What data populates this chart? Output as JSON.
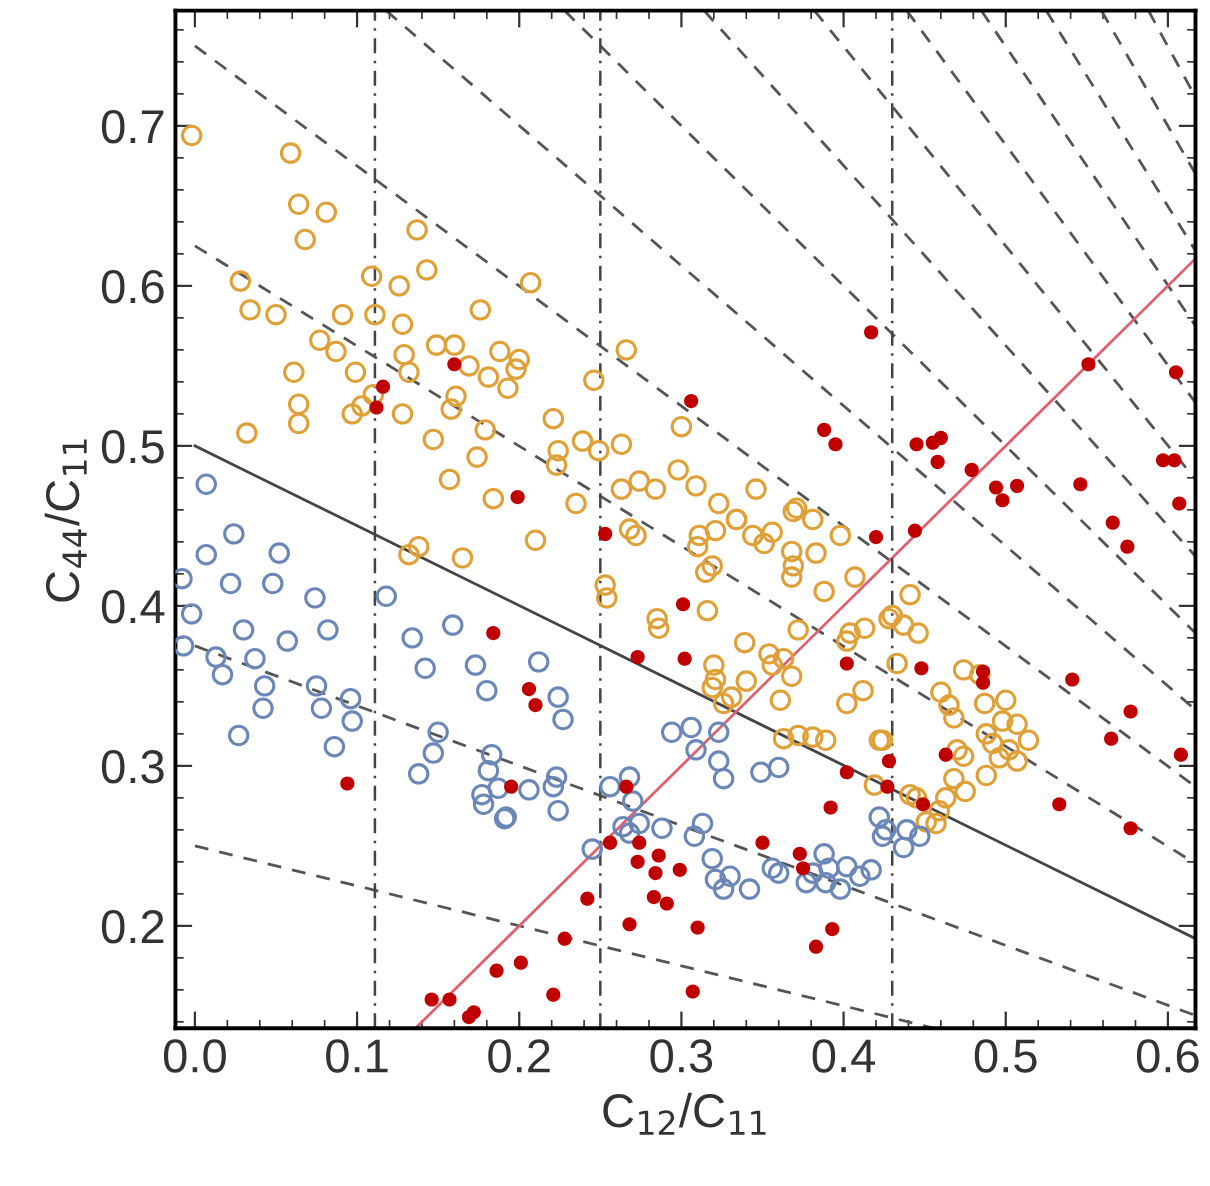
{
  "chart_data": {
    "type": "scatter",
    "xlabel": "C$_{12}$/C$_{11}$",
    "ylabel": "C$_{44}$/C$_{11}$",
    "xlim": [
      -0.012,
      0.617
    ],
    "ylim": [
      0.136,
      0.772
    ],
    "xticks": [
      {
        "value": 0,
        "label": "0.0"
      },
      0.1,
      0.2,
      0.3,
      0.4,
      0.5,
      0.6
    ],
    "yticks": [
      0.2,
      0.3,
      0.4,
      0.5,
      0.6,
      0.7
    ],
    "grid": false,
    "ref_lines": [
      {
        "axis": "x",
        "value": 0.111,
        "color": "#444444",
        "line_style": "dashdot"
      },
      {
        "axis": "x",
        "value": 0.25,
        "color": "#444444",
        "line_style": "dashdot"
      },
      {
        "axis": "x",
        "value": 0.43,
        "color": "#444444",
        "line_style": "dashdot"
      }
    ],
    "series": [
      {
        "type": "line",
        "color": "#555555",
        "line_style": "dashed",
        "marker": "none",
        "x": [
          0,
          0.456
        ],
        "values": [
          0.25,
          0.136
        ]
      },
      {
        "type": "line",
        "color": "#555555",
        "line_style": "dashed",
        "marker": "none",
        "x": [
          0,
          0.617
        ],
        "values": [
          0.375,
          0.144
        ]
      },
      {
        "type": "line",
        "color": "#444444",
        "line_style": "solid",
        "marker": "none",
        "x": [
          0,
          0.617
        ],
        "values": [
          0.5,
          0.192
        ]
      },
      {
        "type": "line",
        "color": "#555555",
        "line_style": "dashed",
        "marker": "none",
        "x": [
          0,
          0.617
        ],
        "values": [
          0.625,
          0.239
        ]
      },
      {
        "type": "line",
        "color": "#555555",
        "line_style": "dashed",
        "marker": "none",
        "x": [
          0,
          0.617
        ],
        "values": [
          0.75,
          0.287
        ]
      },
      {
        "type": "line",
        "color": "#555555",
        "line_style": "dashed",
        "marker": "none",
        "x": [
          0.118,
          0.617
        ],
        "values": [
          0.772,
          0.335
        ]
      },
      {
        "type": "line",
        "color": "#555555",
        "line_style": "dashed",
        "marker": "none",
        "x": [
          0.228,
          0.617
        ],
        "values": [
          0.772,
          0.383
        ]
      },
      {
        "type": "line",
        "color": "#555555",
        "line_style": "dashed",
        "marker": "none",
        "x": [
          0.314,
          0.617
        ],
        "values": [
          0.772,
          0.431
        ]
      },
      {
        "type": "line",
        "color": "#555555",
        "line_style": "dashed",
        "marker": "none",
        "x": [
          0.382,
          0.617
        ],
        "values": [
          0.772,
          0.479
        ]
      },
      {
        "type": "line",
        "color": "#555555",
        "line_style": "dashed",
        "marker": "none",
        "x": [
          0.439,
          0.617
        ],
        "values": [
          0.772,
          0.527
        ]
      },
      {
        "type": "line",
        "color": "#555555",
        "line_style": "dashed",
        "marker": "none",
        "x": [
          0.485,
          0.617
        ],
        "values": [
          0.772,
          0.575
        ]
      },
      {
        "type": "line",
        "color": "#555555",
        "line_style": "dashed",
        "marker": "none",
        "x": [
          0.525,
          0.617
        ],
        "values": [
          0.772,
          0.622
        ]
      },
      {
        "type": "line",
        "color": "#555555",
        "line_style": "dashed",
        "marker": "none",
        "x": [
          0.559,
          0.617
        ],
        "values": [
          0.772,
          0.67
        ]
      },
      {
        "type": "line",
        "color": "#555555",
        "line_style": "dashed",
        "marker": "none",
        "x": [
          0.588,
          0.617
        ],
        "values": [
          0.772,
          0.718
        ]
      },
      {
        "type": "line",
        "color": "#e06070",
        "line_style": "solid",
        "marker": "none",
        "x": [
          0.136,
          0.617
        ],
        "values": [
          0.136,
          0.617
        ]
      },
      {
        "type": "scatter",
        "color": "#dfa037",
        "marker": "circle_open",
        "x": [
          -0.002,
          0.059,
          0.064,
          0.081,
          0.068,
          0.137,
          0.143,
          0.028,
          0.109,
          0.126,
          0.034,
          0.05,
          0.091,
          0.111,
          0.128,
          0.176,
          0.077,
          0.087,
          0.099,
          0.061,
          0.129,
          0.132,
          0.149,
          0.16,
          0.169,
          0.188,
          0.181,
          0.193,
          0.11,
          0.103,
          0.097,
          0.128,
          0.064,
          0.064,
          0.032,
          0.161,
          0.158,
          0.147,
          0.179,
          0.174,
          0.157,
          0.184,
          0.207,
          0.2,
          0.198,
          0.266,
          0.246,
          0.221,
          0.239,
          0.249,
          0.263,
          0.224,
          0.223,
          0.3,
          0.298,
          0.274,
          0.284,
          0.309,
          0.263,
          0.235,
          0.323,
          0.346,
          0.371,
          0.334,
          0.21,
          0.268,
          0.272,
          0.253,
          0.254,
          0.311,
          0.31,
          0.321,
          0.334,
          0.344,
          0.356,
          0.351,
          0.369,
          0.381,
          0.398,
          0.368,
          0.369,
          0.368,
          0.383,
          0.315,
          0.319,
          0.316,
          0.388,
          0.407,
          0.285,
          0.286,
          0.339,
          0.354,
          0.356,
          0.363,
          0.368,
          0.372,
          0.32,
          0.321,
          0.319,
          0.331,
          0.34,
          0.326,
          0.361,
          0.402,
          0.412,
          0.402,
          0.404,
          0.413,
          0.43,
          0.363,
          0.372,
          0.381,
          0.389,
          0.424,
          0.419,
          0.132,
          0.138,
          0.165,
          0.441,
          0.428,
          0.437,
          0.446,
          0.433,
          0.474,
          0.484,
          0.46,
          0.465,
          0.468,
          0.487,
          0.5,
          0.498,
          0.507,
          0.488,
          0.492,
          0.502,
          0.507,
          0.514,
          0.496,
          0.47,
          0.474,
          0.488,
          0.468,
          0.475,
          0.463,
          0.441,
          0.445,
          0.459,
          0.457,
          0.451,
          0.422
        ],
        "values": [
          0.694,
          0.683,
          0.651,
          0.646,
          0.629,
          0.635,
          0.61,
          0.603,
          0.606,
          0.6,
          0.585,
          0.582,
          0.582,
          0.582,
          0.576,
          0.585,
          0.566,
          0.559,
          0.546,
          0.546,
          0.557,
          0.546,
          0.563,
          0.563,
          0.55,
          0.559,
          0.543,
          0.536,
          0.532,
          0.525,
          0.52,
          0.52,
          0.526,
          0.514,
          0.508,
          0.531,
          0.523,
          0.504,
          0.51,
          0.493,
          0.479,
          0.467,
          0.602,
          0.554,
          0.548,
          0.56,
          0.541,
          0.517,
          0.503,
          0.497,
          0.501,
          0.497,
          0.488,
          0.512,
          0.485,
          0.478,
          0.473,
          0.475,
          0.473,
          0.464,
          0.464,
          0.473,
          0.461,
          0.454,
          0.441,
          0.448,
          0.444,
          0.413,
          0.405,
          0.444,
          0.437,
          0.447,
          0.454,
          0.444,
          0.446,
          0.439,
          0.459,
          0.454,
          0.444,
          0.434,
          0.425,
          0.418,
          0.433,
          0.421,
          0.425,
          0.397,
          0.409,
          0.418,
          0.392,
          0.386,
          0.377,
          0.37,
          0.363,
          0.367,
          0.356,
          0.385,
          0.363,
          0.354,
          0.349,
          0.343,
          0.353,
          0.339,
          0.341,
          0.378,
          0.347,
          0.339,
          0.383,
          0.386,
          0.394,
          0.317,
          0.319,
          0.318,
          0.316,
          0.316,
          0.288,
          0.432,
          0.437,
          0.43,
          0.407,
          0.392,
          0.388,
          0.383,
          0.364,
          0.36,
          0.357,
          0.346,
          0.338,
          0.33,
          0.339,
          0.341,
          0.328,
          0.326,
          0.32,
          0.314,
          0.31,
          0.303,
          0.316,
          0.305,
          0.31,
          0.306,
          0.294,
          0.292,
          0.284,
          0.28,
          0.282,
          0.28,
          0.272,
          0.264,
          0.265,
          0.316
        ]
      },
      {
        "type": "scatter",
        "color": "#6a87b8",
        "marker": "circle_open",
        "x": [
          0.007,
          0.007,
          0.024,
          -0.008,
          -0.002,
          0.022,
          0.052,
          0.048,
          0.074,
          0.03,
          0.057,
          0.082,
          -0.007,
          0.013,
          0.017,
          0.037,
          0.043,
          0.042,
          0.075,
          0.078,
          0.096,
          0.097,
          0.086,
          0.027,
          0.118,
          0.134,
          0.142,
          0.159,
          0.173,
          0.18,
          0.15,
          0.147,
          0.138,
          0.183,
          0.181,
          0.177,
          0.178,
          0.187,
          0.191,
          0.212,
          0.224,
          0.227,
          0.294,
          0.306,
          0.323,
          0.309,
          0.323,
          0.326,
          0.349,
          0.36,
          0.223,
          0.221,
          0.224,
          0.206,
          0.192,
          0.256,
          0.268,
          0.27,
          0.264,
          0.274,
          0.288,
          0.245,
          0.268,
          0.308,
          0.313,
          0.319,
          0.321,
          0.33,
          0.326,
          0.342,
          0.356,
          0.36,
          0.377,
          0.381,
          0.388,
          0.391,
          0.389,
          0.398,
          0.402,
          0.41,
          0.417,
          0.422,
          0.426,
          0.439,
          0.437,
          0.447,
          0.424
        ],
        "values": [
          0.476,
          0.432,
          0.445,
          0.417,
          0.395,
          0.414,
          0.433,
          0.414,
          0.405,
          0.385,
          0.378,
          0.385,
          0.375,
          0.368,
          0.357,
          0.367,
          0.35,
          0.336,
          0.35,
          0.336,
          0.342,
          0.328,
          0.312,
          0.319,
          0.406,
          0.38,
          0.361,
          0.388,
          0.363,
          0.347,
          0.321,
          0.308,
          0.295,
          0.307,
          0.297,
          0.282,
          0.276,
          0.286,
          0.267,
          0.365,
          0.343,
          0.329,
          0.321,
          0.324,
          0.321,
          0.31,
          0.303,
          0.292,
          0.296,
          0.299,
          0.293,
          0.287,
          0.272,
          0.285,
          0.268,
          0.287,
          0.293,
          0.278,
          0.262,
          0.264,
          0.261,
          0.248,
          0.258,
          0.256,
          0.264,
          0.242,
          0.229,
          0.231,
          0.223,
          0.223,
          0.236,
          0.233,
          0.227,
          0.233,
          0.245,
          0.236,
          0.227,
          0.223,
          0.237,
          0.231,
          0.235,
          0.268,
          0.26,
          0.26,
          0.249,
          0.256,
          0.256
        ]
      },
      {
        "type": "scatter",
        "color": "#c00000",
        "marker": "circle",
        "x": [
          0.116,
          0.112,
          0.16,
          0.199,
          0.417,
          0.306,
          0.388,
          0.395,
          0.445,
          0.455,
          0.46,
          0.458,
          0.479,
          0.494,
          0.507,
          0.498,
          0.546,
          0.551,
          0.605,
          0.597,
          0.604,
          0.607,
          0.566,
          0.253,
          0.301,
          0.273,
          0.302,
          0.206,
          0.21,
          0.195,
          0.266,
          0.256,
          0.274,
          0.286,
          0.273,
          0.284,
          0.299,
          0.242,
          0.283,
          0.291,
          0.228,
          0.268,
          0.31,
          0.201,
          0.221,
          0.307,
          0.383,
          0.393,
          0.35,
          0.373,
          0.375,
          0.392,
          0.402,
          0.402,
          0.42,
          0.427,
          0.184,
          0.094,
          0.146,
          0.157,
          0.172,
          0.169,
          0.186,
          0.444,
          0.575,
          0.448,
          0.486,
          0.486,
          0.541,
          0.577,
          0.565,
          0.608,
          0.463,
          0.428,
          0.449,
          0.533,
          0.577
        ],
        "values": [
          0.537,
          0.524,
          0.551,
          0.468,
          0.571,
          0.528,
          0.51,
          0.501,
          0.501,
          0.502,
          0.505,
          0.49,
          0.485,
          0.474,
          0.475,
          0.466,
          0.476,
          0.551,
          0.546,
          0.491,
          0.491,
          0.464,
          0.452,
          0.445,
          0.401,
          0.368,
          0.367,
          0.348,
          0.338,
          0.287,
          0.287,
          0.252,
          0.252,
          0.244,
          0.24,
          0.233,
          0.235,
          0.217,
          0.218,
          0.214,
          0.192,
          0.201,
          0.199,
          0.177,
          0.157,
          0.159,
          0.187,
          0.198,
          0.252,
          0.245,
          0.236,
          0.274,
          0.296,
          0.364,
          0.443,
          0.287,
          0.383,
          0.289,
          0.154,
          0.154,
          0.146,
          0.143,
          0.172,
          0.447,
          0.437,
          0.361,
          0.359,
          0.352,
          0.354,
          0.334,
          0.317,
          0.307,
          0.307,
          0.303,
          0.276,
          0.276,
          0.261
        ]
      }
    ]
  }
}
